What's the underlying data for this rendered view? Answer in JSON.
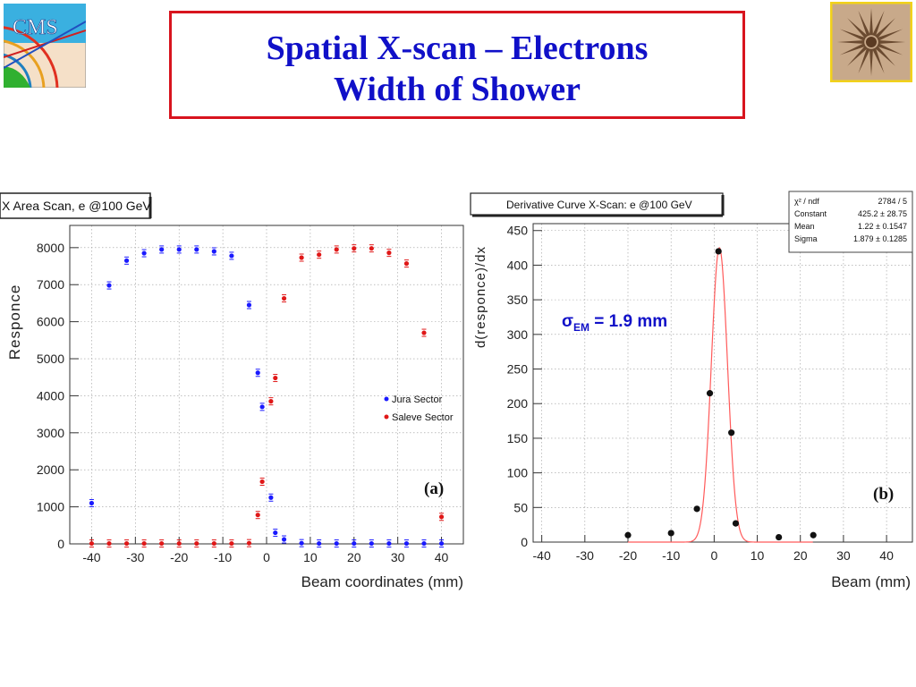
{
  "slide": {
    "title_line1": "Spatial X-scan – Electrons",
    "title_line2": "Width of Shower",
    "accent_title": "#1010c8",
    "accent_border": "#d8141e"
  },
  "logos": {
    "left": {
      "text": "CMS",
      "icon": "cms-logo-icon"
    },
    "right": {
      "icon": "vergina-sun-logo-icon"
    }
  },
  "chart_data": [
    {
      "type": "scatter",
      "title": "X Area Scan, e @100 GeV",
      "xlabel": "Beam coordinates (mm)",
      "ylabel": "Responce",
      "xlim": [
        -45,
        45
      ],
      "ylim": [
        0,
        8600
      ],
      "xticks": [
        -40,
        -30,
        -20,
        -10,
        0,
        10,
        20,
        30,
        40
      ],
      "yticks": [
        0,
        1000,
        2000,
        3000,
        4000,
        5000,
        6000,
        7000,
        8000
      ],
      "panel_label": "(a)",
      "legend_position": "right-middle",
      "grid": true,
      "series": [
        {
          "name": "Jura Sector",
          "color": "#1a1aff",
          "x": [
            -40,
            -36,
            -32,
            -28,
            -24,
            -20,
            -16,
            -12,
            -8,
            -4,
            -2,
            -1,
            1,
            2,
            4,
            8,
            12,
            16,
            20,
            24,
            28,
            32,
            36,
            40
          ],
          "y": [
            1100,
            6980,
            7650,
            7850,
            7950,
            7950,
            7950,
            7900,
            7780,
            6450,
            4620,
            3700,
            1250,
            300,
            120,
            20,
            10,
            10,
            10,
            10,
            10,
            10,
            10,
            10
          ]
        },
        {
          "name": "Saleve Sector",
          "color": "#e01818",
          "x": [
            -40,
            -36,
            -32,
            -28,
            -24,
            -20,
            -16,
            -12,
            -8,
            -4,
            -2,
            -1,
            1,
            2,
            4,
            8,
            12,
            16,
            20,
            24,
            28,
            32,
            36,
            40
          ],
          "y": [
            10,
            10,
            10,
            10,
            10,
            10,
            10,
            10,
            10,
            20,
            780,
            1680,
            3850,
            4480,
            6630,
            7730,
            7810,
            7950,
            7980,
            7980,
            7860,
            7570,
            5700,
            730
          ]
        }
      ]
    },
    {
      "type": "scatter",
      "title": "Derivative Curve X-Scan: e @100 GeV",
      "xlabel": "Beam (mm)",
      "ylabel": "d(responce)/dx",
      "xlim": [
        -42,
        46
      ],
      "ylim": [
        0,
        460
      ],
      "xticks": [
        -40,
        -30,
        -20,
        -10,
        0,
        10,
        20,
        30,
        40
      ],
      "yticks": [
        0,
        50,
        100,
        150,
        200,
        250,
        300,
        350,
        400,
        450
      ],
      "panel_label": "(b)",
      "annotation_sigma": "σ",
      "annotation_sub": "EM",
      "annotation_value": " = 1.9 mm",
      "grid": true,
      "points": {
        "color": "#111111",
        "x": [
          -20,
          -10,
          -4,
          -1,
          1,
          4,
          5,
          15,
          23
        ],
        "y": [
          10,
          13,
          48,
          215,
          420,
          158,
          27,
          7,
          10
        ]
      },
      "fit": {
        "type": "gaussian",
        "color": "#ff5a5a",
        "constant": 425.2,
        "mean": 1.22,
        "sigma": 1.879
      },
      "stats_box": {
        "rows": [
          {
            "label": "χ² / ndf",
            "value": "2784 / 5"
          },
          {
            "label": "Constant",
            "value": "425.2 ± 28.75"
          },
          {
            "label": "Mean",
            "value": "1.22 ± 0.1547"
          },
          {
            "label": "Sigma",
            "value": "1.879 ± 0.1285"
          }
        ]
      }
    }
  ]
}
